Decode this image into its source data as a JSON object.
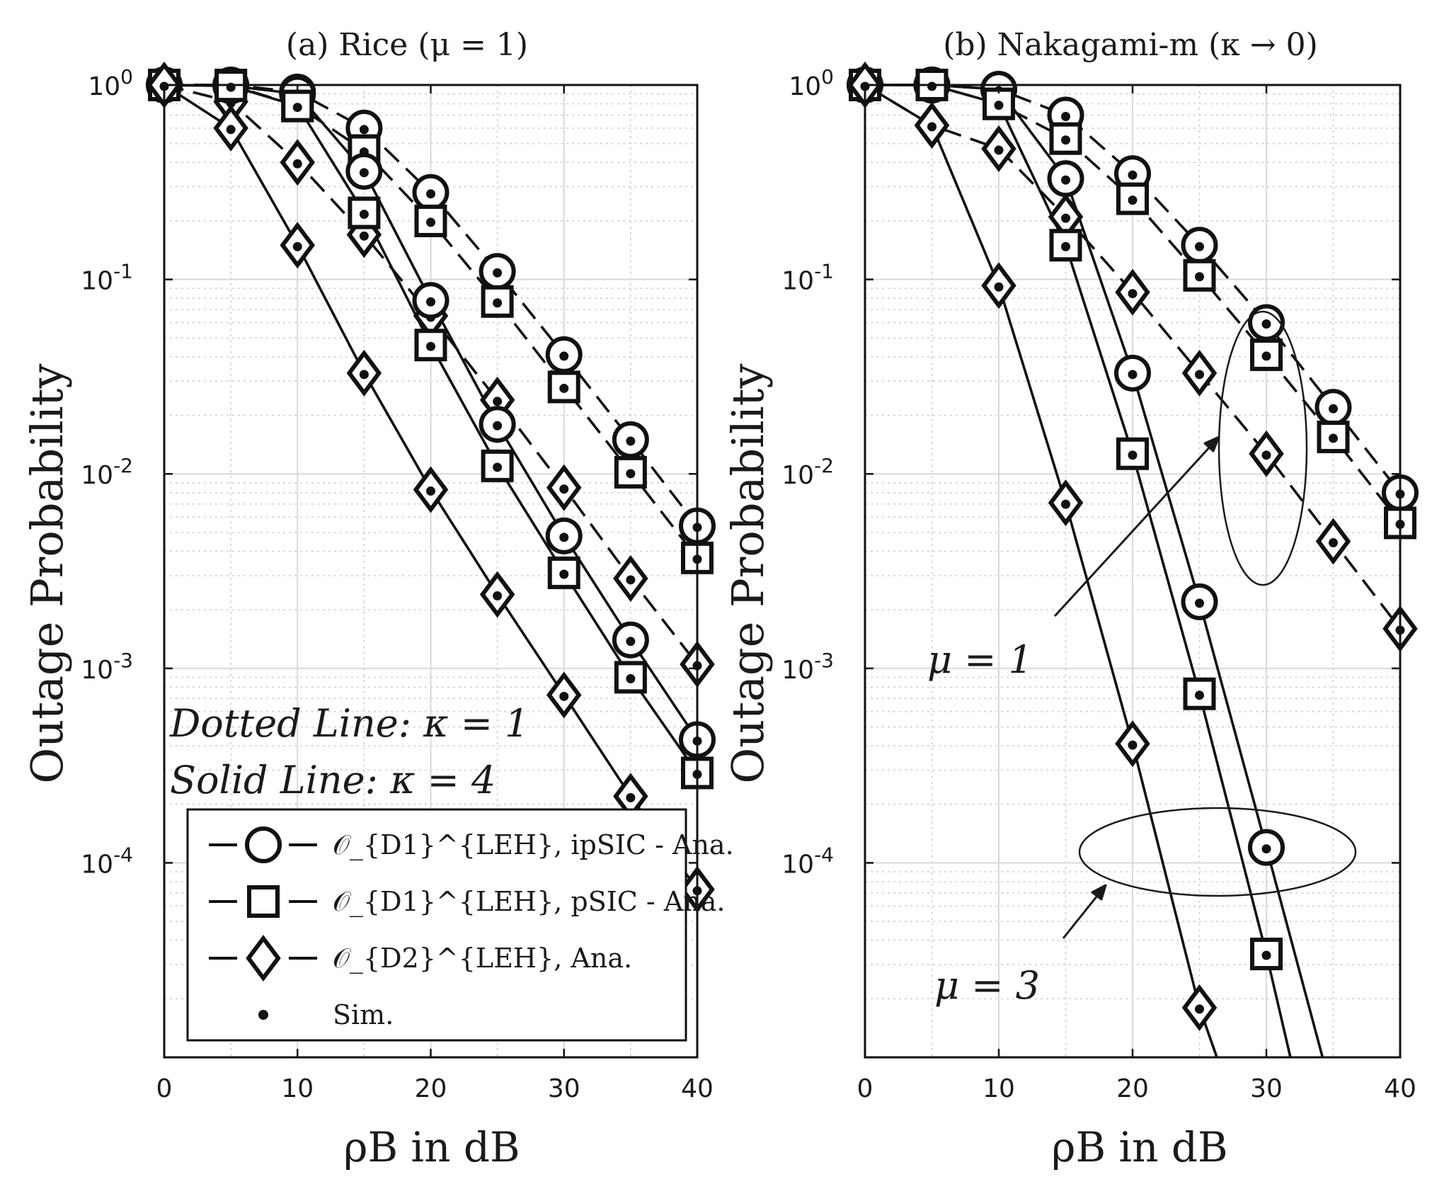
{
  "figure": {
    "annotations_a": [
      "Dotted Line: κ = 1",
      "Solid Line: κ = 4"
    ],
    "annotations_b": [
      "μ = 1",
      "μ = 3"
    ],
    "legend": [
      {
        "label": "𝒪_{D1}^{LEH}, ipSIC - Ana.",
        "marker": "circle"
      },
      {
        "label": "𝒪_{D1}^{LEH}, pSIC - Ana.",
        "marker": "square"
      },
      {
        "label": "𝒪_{D2}^{LEH}, Ana.",
        "marker": "diamond"
      },
      {
        "label": "Sim.",
        "marker": "dot"
      }
    ]
  },
  "chart_data": [
    {
      "type": "line",
      "title": "(a) Rice (μ = 1)",
      "xlabel": "ρB in dB",
      "ylabel": "Outage Probability",
      "x_ticks": [
        "0",
        "10",
        "20",
        "30",
        "40"
      ],
      "y_ticks": [
        "10^0",
        "10^-1",
        "10^-2",
        "10^-3",
        "10^-4"
      ],
      "xlim": [
        0,
        40
      ],
      "ylim": [
        1e-05,
        1
      ],
      "yscale": "log",
      "grid": true,
      "legend_position": "bottom-left",
      "x": [
        0,
        5,
        10,
        15,
        20,
        25,
        30,
        35,
        40
      ],
      "series": [
        {
          "marker": "circle",
          "style": "dashed",
          "values": [
            1.0,
            1.0,
            0.92,
            0.6,
            0.28,
            0.11,
            0.041,
            0.015,
            0.0054
          ]
        },
        {
          "marker": "square",
          "style": "dashed",
          "values": [
            1.0,
            1.0,
            0.78,
            0.46,
            0.2,
            0.077,
            0.028,
            0.0102,
            0.0037
          ]
        },
        {
          "marker": "diamond",
          "style": "dashed",
          "values": [
            1.0,
            0.82,
            0.4,
            0.17,
            0.065,
            0.024,
            0.0085,
            0.0029,
            0.00105
          ]
        },
        {
          "marker": "circle",
          "style": "solid",
          "values": [
            1.0,
            0.99,
            0.9,
            0.36,
            0.078,
            0.018,
            0.0048,
            0.0014,
            0.00043
          ]
        },
        {
          "marker": "square",
          "style": "solid",
          "values": [
            1.0,
            0.99,
            0.78,
            0.22,
            0.046,
            0.011,
            0.0031,
            0.0009,
            0.00029
          ]
        },
        {
          "marker": "diamond",
          "style": "solid",
          "values": [
            1.0,
            0.6,
            0.15,
            0.033,
            0.0083,
            0.0024,
            0.00073,
            0.00022,
            7.3e-05
          ]
        }
      ]
    },
    {
      "type": "line",
      "title": "(b) Nakagami-m (κ → 0)",
      "xlabel": "ρB in dB",
      "ylabel": "Outage Probability",
      "x_ticks": [
        "0",
        "10",
        "20",
        "30",
        "40"
      ],
      "y_ticks": [
        "10^0",
        "10^-1",
        "10^-2",
        "10^-3",
        "10^-4"
      ],
      "xlim": [
        0,
        40
      ],
      "ylim": [
        1e-05,
        1
      ],
      "yscale": "log",
      "grid": true,
      "x": [
        0,
        5,
        10,
        15,
        20,
        25,
        30,
        35,
        40
      ],
      "series": [
        {
          "marker": "circle",
          "style": "dashed",
          "values": [
            1.0,
            1.0,
            0.95,
            0.7,
            0.35,
            0.15,
            0.06,
            0.022,
            0.008
          ]
        },
        {
          "marker": "square",
          "style": "dashed",
          "values": [
            1.0,
            1.0,
            0.8,
            0.53,
            0.26,
            0.105,
            0.041,
            0.0155,
            0.0056
          ]
        },
        {
          "marker": "diamond",
          "style": "dashed",
          "values": [
            1.0,
            0.62,
            0.47,
            0.21,
            0.086,
            0.033,
            0.0127,
            0.0045,
            0.0016
          ]
        },
        {
          "marker": "circle",
          "style": "solid",
          "x": [
            0,
            5,
            10,
            15,
            20,
            25,
            30,
            34.2
          ],
          "values": [
            1.0,
            1.0,
            0.95,
            0.33,
            0.033,
            0.0022,
            0.00012,
            1e-05
          ]
        },
        {
          "marker": "square",
          "style": "solid",
          "x": [
            0,
            5,
            10,
            15,
            20,
            25,
            30,
            31.8
          ],
          "values": [
            1.0,
            1.0,
            0.8,
            0.15,
            0.0127,
            0.00074,
            3.4e-05,
            1e-05
          ]
        },
        {
          "marker": "diamond",
          "style": "solid",
          "x": [
            0,
            5,
            10,
            15,
            20,
            25,
            26.3
          ],
          "values": [
            1.0,
            0.62,
            0.093,
            0.0071,
            0.00041,
            1.8e-05,
            1e-05
          ]
        }
      ]
    }
  ]
}
